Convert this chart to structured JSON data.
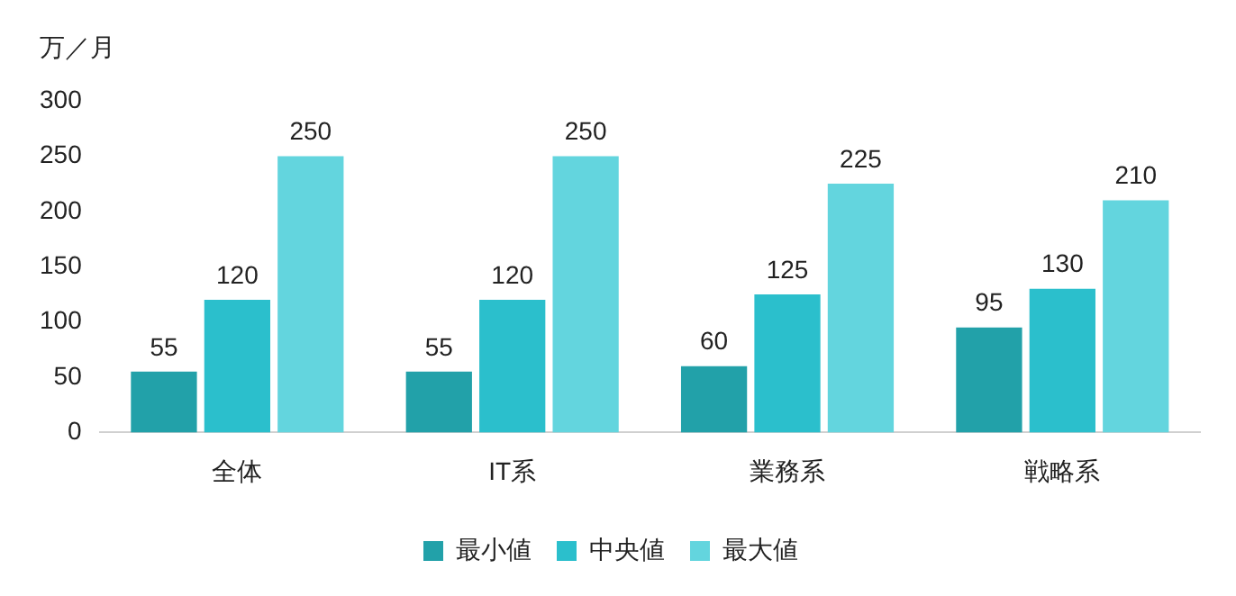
{
  "chart_data": {
    "type": "bar",
    "ylabel": "万／月",
    "categories": [
      "全体",
      "IT系",
      "業務系",
      "戦略系"
    ],
    "series": [
      {
        "name": "最小値",
        "color": "#22a1a9",
        "values": [
          55,
          55,
          60,
          95
        ]
      },
      {
        "name": "中央値",
        "color": "#2bbfcc",
        "values": [
          120,
          120,
          125,
          130
        ]
      },
      {
        "name": "最大値",
        "color": "#63d5de",
        "values": [
          250,
          250,
          225,
          210
        ]
      }
    ],
    "ylim": [
      0,
      300
    ],
    "yticks": [
      0,
      50,
      100,
      150,
      200,
      250,
      300
    ],
    "grid": false,
    "legend": "bottom",
    "data_labels": true
  }
}
